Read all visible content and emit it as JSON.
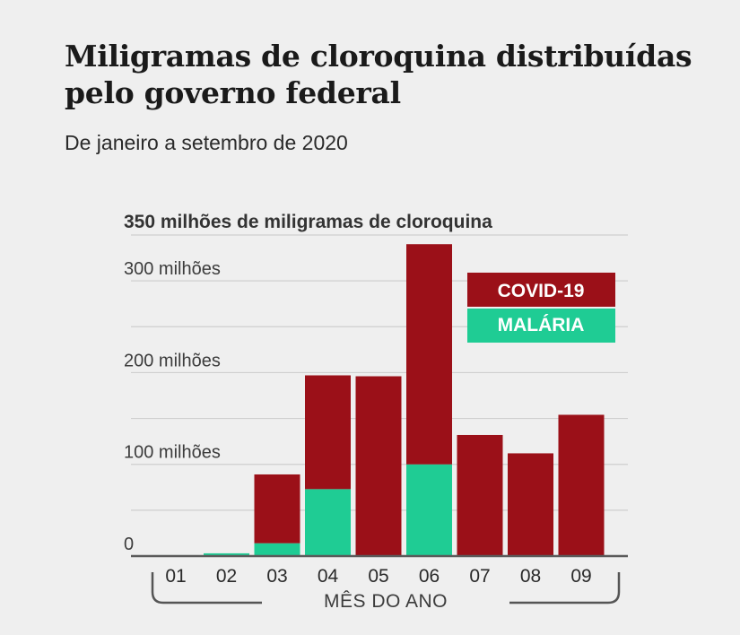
{
  "header": {
    "title": "Miligramas de cloroquina distribuídas pelo governo federal",
    "subtitle": "De janeiro a setembro de 2020"
  },
  "chart_data": {
    "type": "bar",
    "stacked": true,
    "categories": [
      "01",
      "02",
      "03",
      "04",
      "05",
      "06",
      "07",
      "08",
      "09"
    ],
    "series": [
      {
        "name": "MALÁRIA",
        "color": "#1fcc94",
        "values": [
          1,
          3,
          14,
          73,
          0,
          100,
          0,
          0,
          0
        ]
      },
      {
        "name": "COVID-19",
        "color": "#9b1018",
        "values": [
          0,
          0,
          75,
          124,
          196,
          240,
          132,
          112,
          154
        ]
      }
    ],
    "ylim": [
      0,
      350
    ],
    "ylabel": "350 milhões de miligramas de cloroquina",
    "yticks": [
      {
        "value": 0,
        "label": "0"
      },
      {
        "value": 100,
        "label": "100 milhões"
      },
      {
        "value": 200,
        "label": "200 milhões"
      },
      {
        "value": 300,
        "label": "300 milhões"
      }
    ],
    "gridlines": [
      50,
      100,
      150,
      200,
      250,
      300,
      350
    ],
    "xlabel": "MÊS DO ANO",
    "legend": [
      "COVID-19",
      "MALÁRIA"
    ],
    "legend_position": "top-right",
    "grid": true
  }
}
